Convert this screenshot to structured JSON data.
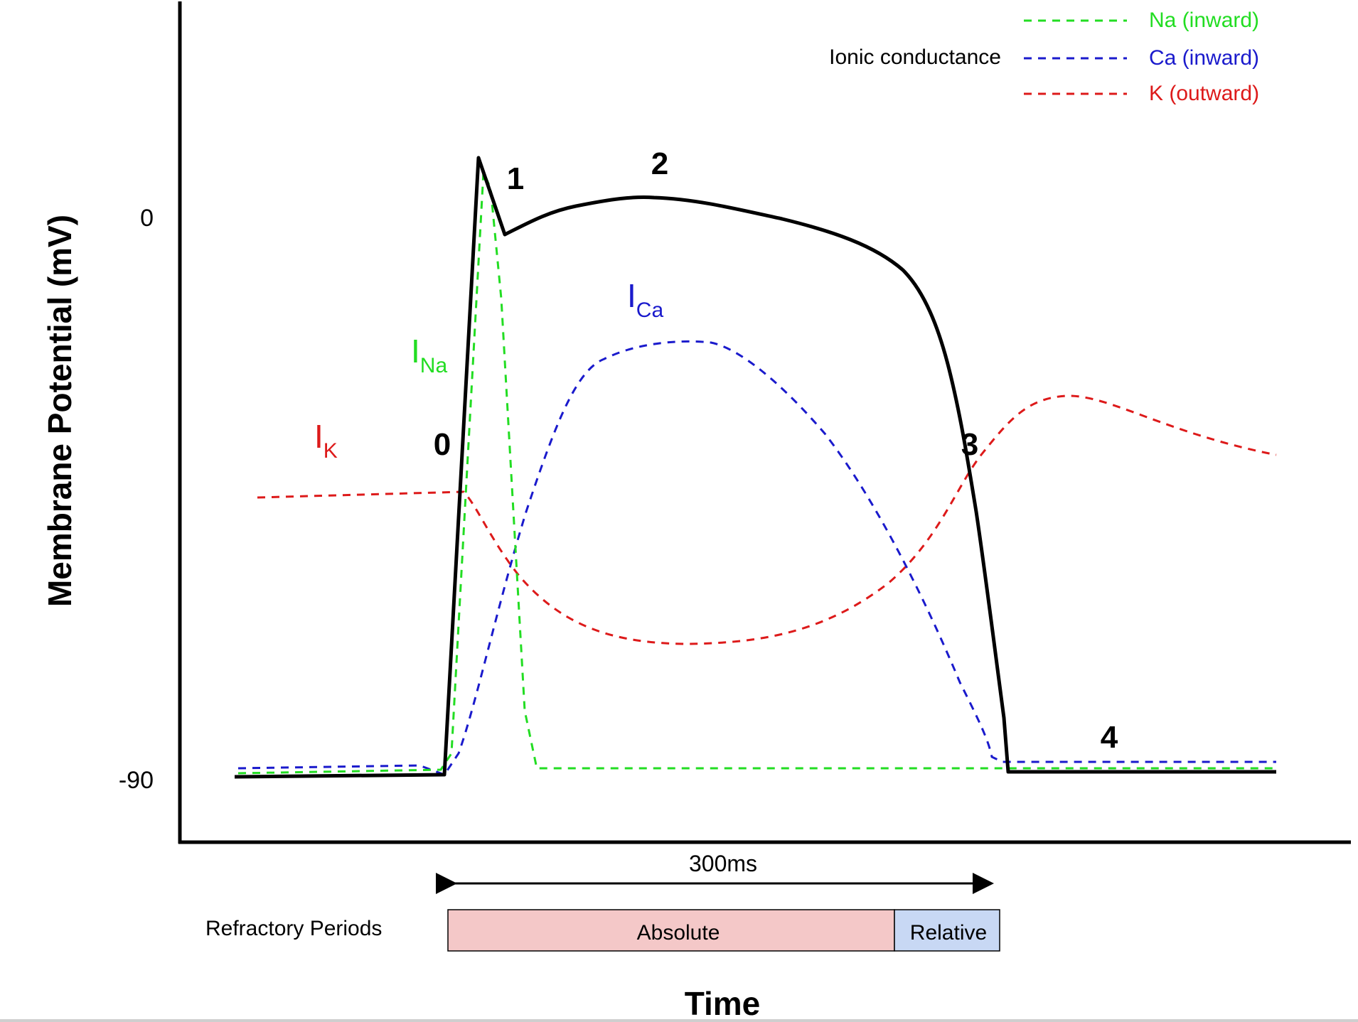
{
  "y_axis": {
    "label": "Membrane Potential (mV)",
    "ticks": [
      "0",
      "-90"
    ]
  },
  "x_axis": {
    "label": "Time"
  },
  "legend": {
    "title": "Ionic conductance",
    "items": [
      {
        "label": "Na (inward)",
        "color": "#22dd22"
      },
      {
        "label": "Ca (inward)",
        "color": "#1a1acc"
      },
      {
        "label": "K (outward)",
        "color": "#dd1a1a"
      }
    ]
  },
  "phases": [
    "0",
    "1",
    "2",
    "3",
    "4"
  ],
  "currents": {
    "na": {
      "base": "I",
      "sub": "Na",
      "color": "#22dd22"
    },
    "ca": {
      "base": "I",
      "sub": "Ca",
      "color": "#1a1acc"
    },
    "k": {
      "base": "I",
      "sub": "K",
      "color": "#dd1a1a"
    }
  },
  "duration": {
    "label": "300ms"
  },
  "refractory": {
    "label": "Refractory Periods",
    "absolute": {
      "label": "Absolute",
      "color": "#f4c8c8"
    },
    "relative": {
      "label": "Relative",
      "color": "#c8d8f4"
    }
  }
}
